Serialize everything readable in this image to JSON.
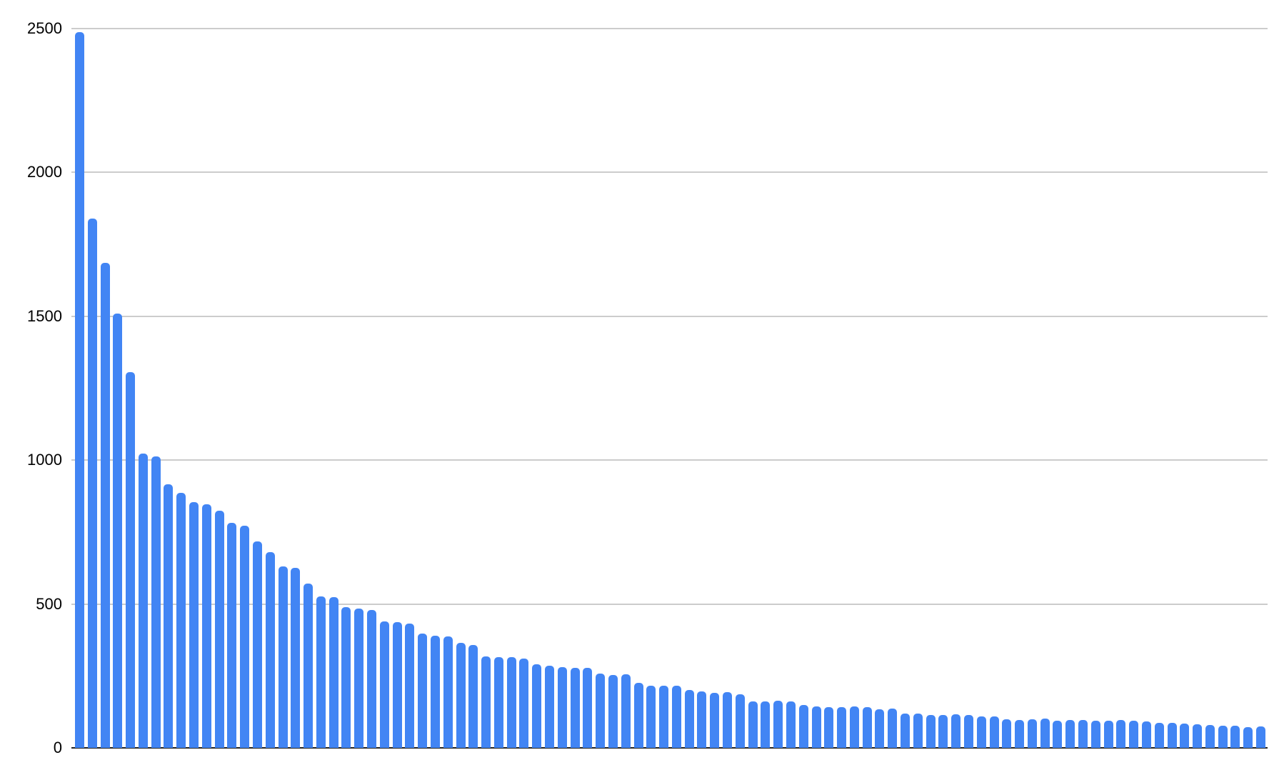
{
  "chart_data": {
    "type": "bar",
    "title": "",
    "xlabel": "",
    "ylabel": "",
    "categories": [],
    "series": [
      {
        "name": "",
        "values": [
          2488,
          1840,
          1685,
          1510,
          1305,
          1022,
          1014,
          915,
          886,
          853,
          847,
          825,
          781,
          771,
          717,
          681,
          631,
          626,
          571,
          527,
          523,
          489,
          483,
          480,
          440,
          436,
          433,
          398,
          389,
          388,
          364,
          358,
          318,
          315,
          316,
          310,
          290,
          285,
          280,
          279,
          278,
          258,
          252,
          255,
          225,
          215,
          217,
          215,
          201,
          197,
          192,
          194,
          186,
          161,
          162,
          163,
          161,
          148,
          143,
          141,
          141,
          143,
          141,
          135,
          136,
          120,
          120,
          114,
          115,
          116,
          115,
          109,
          110,
          99,
          98,
          100,
          101,
          95,
          97,
          98,
          95,
          95,
          96,
          94,
          91,
          88,
          87,
          85,
          82,
          80,
          78,
          76,
          72,
          74
        ]
      }
    ],
    "ylim": [
      0,
      2500
    ],
    "yticks": [
      0,
      500,
      1000,
      1500,
      2000,
      2500
    ],
    "ytick_labels": [
      "0",
      "500",
      "1000",
      "1500",
      "2000",
      "2500"
    ],
    "grid": "horizontal-only",
    "legend": "none",
    "x_axis_labels_shown": false,
    "colors": {
      "bar": "#4285f4",
      "gridline": "#cccccc",
      "axis_line": "#212121",
      "tick_text": "#000000",
      "background": "#ffffff"
    }
  }
}
